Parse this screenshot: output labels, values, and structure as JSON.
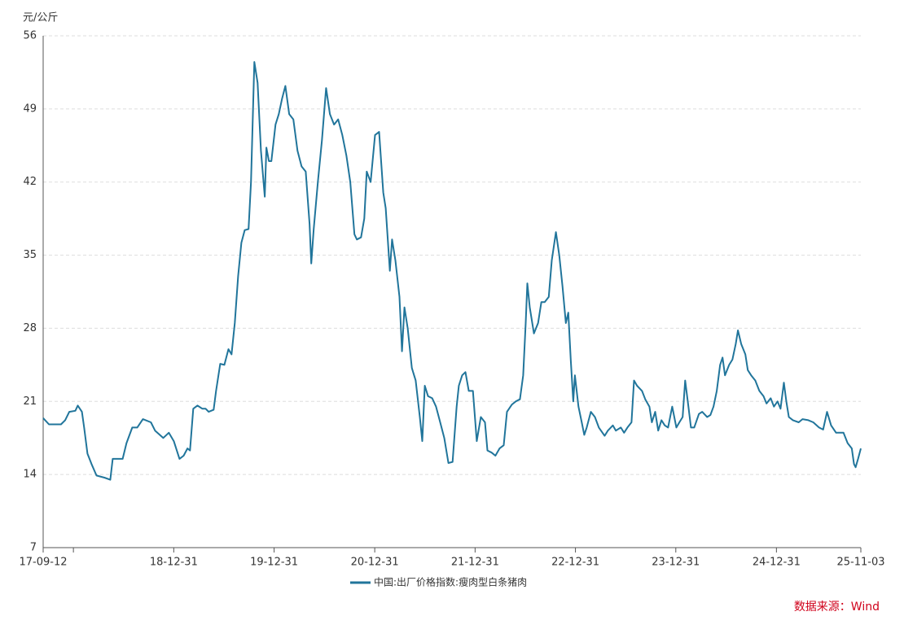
{
  "chart_data": {
    "type": "line",
    "y_label": "元/公斤",
    "source": "数据来源：Wind",
    "grid": true,
    "xlim": [
      "17-09-12",
      "25-11-03"
    ],
    "xticks": [
      "17-09-12",
      {
        "value": "17-12-31",
        "label": null
      },
      "18-12-31",
      "19-12-31",
      "20-12-31",
      "21-12-31",
      "22-12-31",
      "23-12-31",
      "24-12-31",
      "25-11-03"
    ],
    "ylim": [
      7,
      56
    ],
    "yticks": [
      7,
      14,
      21,
      28,
      35,
      42,
      49,
      56
    ],
    "legend": "bottom",
    "x": [
      "17-09-12",
      "17-10-03",
      "17-11-16",
      "17-12-01",
      "17-12-16",
      "18-01-07",
      "18-01-16",
      "18-01-31",
      "18-02-08",
      "18-02-20",
      "18-03-07",
      "18-03-25",
      "18-04-23",
      "18-05-14",
      "18-05-23",
      "18-06-28",
      "18-07-12",
      "18-08-02",
      "18-08-20",
      "18-09-10",
      "18-10-09",
      "18-10-24",
      "18-11-23",
      "18-12-13",
      "18-12-31",
      "19-01-21",
      "19-02-05",
      "19-02-19",
      "19-02-28",
      "19-03-12",
      "19-03-27",
      "19-04-14",
      "19-04-26",
      "19-05-07",
      "19-05-25",
      "19-06-03",
      "19-06-18",
      "19-07-03",
      "19-07-18",
      "19-07-29",
      "19-08-10",
      "19-08-22",
      "19-09-03",
      "19-09-15",
      "19-09-29",
      "19-10-08",
      "19-10-20",
      "19-11-01",
      "19-11-13",
      "19-11-27",
      "19-12-03",
      "19-12-12",
      "19-12-21",
      "20-01-05",
      "20-01-17",
      "20-01-29",
      "20-02-10",
      "20-02-24",
      "20-03-10",
      "20-03-25",
      "20-04-09",
      "20-04-24",
      "20-05-08",
      "20-05-14",
      "20-05-23",
      "20-06-07",
      "20-06-22",
      "20-07-07",
      "20-07-21",
      "20-08-05",
      "20-08-20",
      "20-09-04",
      "20-09-19",
      "20-10-03",
      "20-10-18",
      "20-10-27",
      "20-11-11",
      "20-11-23",
      "20-12-02",
      "20-12-16",
      "21-01-01",
      "21-01-16",
      "21-01-31",
      "21-02-09",
      "21-02-24",
      "21-03-04",
      "21-03-16",
      "21-03-31",
      "21-04-09",
      "21-04-18",
      "21-04-30",
      "21-05-15",
      "21-05-29",
      "21-06-13",
      "21-06-22",
      "21-07-01",
      "21-07-13",
      "21-07-28",
      "21-08-11",
      "21-08-26",
      "21-09-10",
      "21-09-25",
      "21-10-10",
      "21-10-25",
      "21-11-02",
      "21-11-14",
      "21-11-26",
      "21-12-08",
      "21-12-23",
      "22-01-06",
      "22-01-21",
      "22-02-05",
      "22-02-14",
      "22-03-01",
      "22-03-15",
      "22-03-30",
      "22-04-14",
      "22-04-26",
      "22-05-14",
      "22-05-28",
      "22-06-12",
      "22-06-24",
      "22-07-03",
      "22-07-09",
      "22-07-18",
      "22-08-02",
      "22-08-17",
      "22-08-29",
      "22-09-10",
      "22-09-25",
      "22-10-06",
      "22-10-21",
      "22-11-02",
      "22-11-14",
      "22-11-26",
      "22-12-05",
      "22-12-14",
      "22-12-23",
      "22-12-29",
      "23-01-11",
      "23-01-23",
      "23-02-01",
      "23-02-10",
      "23-02-25",
      "23-03-12",
      "23-03-26",
      "23-04-16",
      "23-04-28",
      "23-05-16",
      "23-05-27",
      "23-06-14",
      "23-06-26",
      "23-07-08",
      "23-07-23",
      "23-08-01",
      "23-08-12",
      "23-08-30",
      "23-09-11",
      "23-09-26",
      "23-10-05",
      "23-10-17",
      "23-10-28",
      "23-11-09",
      "23-11-21",
      "23-12-03",
      "23-12-18",
      "24-01-02",
      "24-01-13",
      "24-01-25",
      "24-02-03",
      "24-02-15",
      "24-02-24",
      "24-03-07",
      "24-03-24",
      "24-04-05",
      "24-04-23",
      "24-05-05",
      "24-05-16",
      "24-05-28",
      "24-06-09",
      "24-06-18",
      "24-06-27",
      "24-07-12",
      "24-07-24",
      "24-08-05",
      "24-08-13",
      "24-08-25",
      "24-09-09",
      "24-09-18",
      "24-09-30",
      "24-10-15",
      "24-10-30",
      "24-11-14",
      "24-11-25",
      "24-12-10",
      "24-12-22",
      "25-01-04",
      "25-01-15",
      "25-01-27",
      "25-02-05",
      "25-02-14",
      "25-03-01",
      "25-03-22",
      "25-04-05",
      "25-04-26",
      "25-05-14",
      "25-06-04",
      "25-06-19",
      "25-07-03",
      "25-07-18",
      "25-08-05",
      "25-08-17",
      "25-09-01",
      "25-09-16",
      "25-10-01",
      "25-10-09",
      "25-10-15",
      "25-10-24",
      "25-11-03"
    ],
    "series": [
      {
        "name": "中国:出厂价格指数:瘦肉型白条猪肉",
        "color": "#21759b",
        "values": [
          19.4,
          18.8,
          18.8,
          19.2,
          20.0,
          20.1,
          20.6,
          20.0,
          18.5,
          16.0,
          15.0,
          13.9,
          13.7,
          13.5,
          15.5,
          15.5,
          17.0,
          18.5,
          18.5,
          19.3,
          19.0,
          18.2,
          17.5,
          18.0,
          17.2,
          15.5,
          15.8,
          16.5,
          16.3,
          20.3,
          20.6,
          20.3,
          20.3,
          20.0,
          20.2,
          22.0,
          24.6,
          24.5,
          26.0,
          25.5,
          28.5,
          33.0,
          36.2,
          37.4,
          37.5,
          42.0,
          53.5,
          51.5,
          45.0,
          40.6,
          45.3,
          44.0,
          44.0,
          47.5,
          48.5,
          50.0,
          51.2,
          48.5,
          48.0,
          45.0,
          43.5,
          43.0,
          38.0,
          34.2,
          37.5,
          42.0,
          46.0,
          51.0,
          48.5,
          47.5,
          48.0,
          46.5,
          44.5,
          42.0,
          37.0,
          36.5,
          36.7,
          38.5,
          43.0,
          42.0,
          46.5,
          46.8,
          41.0,
          39.5,
          33.5,
          36.5,
          34.5,
          31.0,
          25.8,
          30.0,
          28.0,
          24.2,
          23.0,
          19.5,
          17.2,
          22.5,
          21.5,
          21.3,
          20.5,
          19.0,
          17.5,
          15.1,
          15.2,
          20.5,
          22.5,
          23.5,
          23.8,
          22.0,
          22.0,
          17.2,
          19.5,
          19.0,
          16.3,
          16.1,
          15.8,
          16.5,
          16.8,
          20.0,
          20.7,
          21.0,
          21.2,
          23.5,
          28.5,
          32.3,
          30.0,
          27.5,
          28.5,
          30.5,
          30.5,
          31.0,
          34.5,
          37.2,
          35.0,
          32.0,
          28.5,
          29.5,
          25.0,
          21.0,
          23.5,
          20.5,
          19.0,
          17.8,
          18.5,
          20.0,
          19.5,
          18.5,
          17.7,
          18.2,
          18.7,
          18.2,
          18.5,
          18.0,
          18.5,
          19.0,
          23.0,
          22.5,
          22.0,
          21.2,
          20.5,
          19.0,
          20.0,
          18.2,
          19.2,
          18.7,
          18.5,
          20.5,
          18.5,
          19.0,
          19.5,
          23.0,
          20.5,
          18.5,
          18.5,
          19.8,
          20.0,
          19.5,
          19.7,
          20.5,
          22.0,
          24.5,
          25.2,
          23.5,
          24.5,
          25.0,
          26.5,
          27.8,
          26.5,
          25.5,
          24.0,
          23.5,
          23.0,
          22.0,
          21.5,
          20.8,
          21.3,
          20.5,
          21.0,
          20.3,
          22.8,
          21.0,
          19.5,
          19.2,
          19.0,
          19.3,
          19.2,
          19.0,
          18.5,
          18.3,
          20.0,
          18.7,
          18.0,
          18.0,
          18.0,
          17.0,
          16.5,
          15.0,
          14.7,
          15.5,
          16.5
        ]
      }
    ]
  }
}
